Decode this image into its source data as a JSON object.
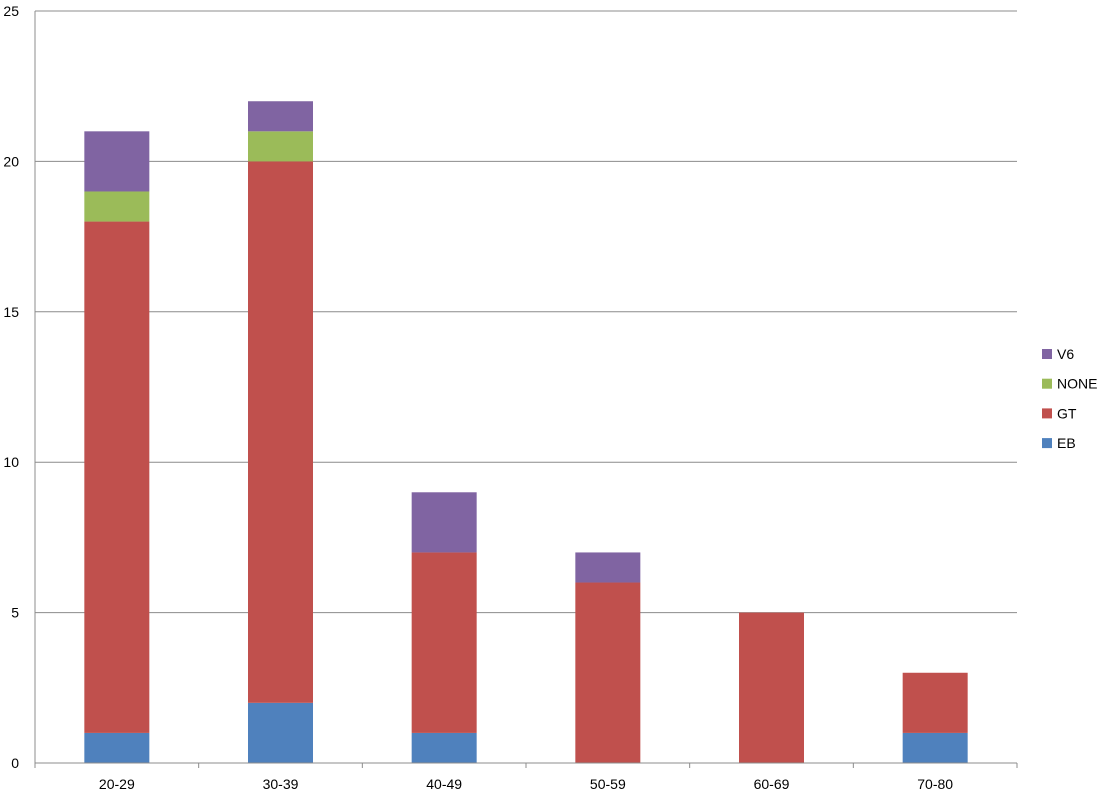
{
  "chart_data": {
    "type": "bar",
    "stacked": true,
    "categories": [
      "20-29",
      "30-39",
      "40-49",
      "50-59",
      "60-69",
      "70-80"
    ],
    "series": [
      {
        "name": "EB",
        "color": "#4f81bd",
        "values": [
          1,
          2,
          1,
          0,
          0,
          1
        ]
      },
      {
        "name": "GT",
        "color": "#c0504d",
        "values": [
          17,
          18,
          6,
          6,
          5,
          2
        ]
      },
      {
        "name": "NONE",
        "color": "#9bbb59",
        "values": [
          1,
          1,
          0,
          0,
          0,
          0
        ]
      },
      {
        "name": "V6",
        "color": "#8064a2",
        "values": [
          2,
          1,
          2,
          1,
          0,
          0
        ]
      }
    ],
    "title": "",
    "xlabel": "",
    "ylabel": "",
    "ylim": [
      0,
      25
    ],
    "yticks": [
      "0",
      "5",
      "10",
      "15",
      "20",
      "25"
    ],
    "grid": true,
    "legend_position": "right"
  }
}
